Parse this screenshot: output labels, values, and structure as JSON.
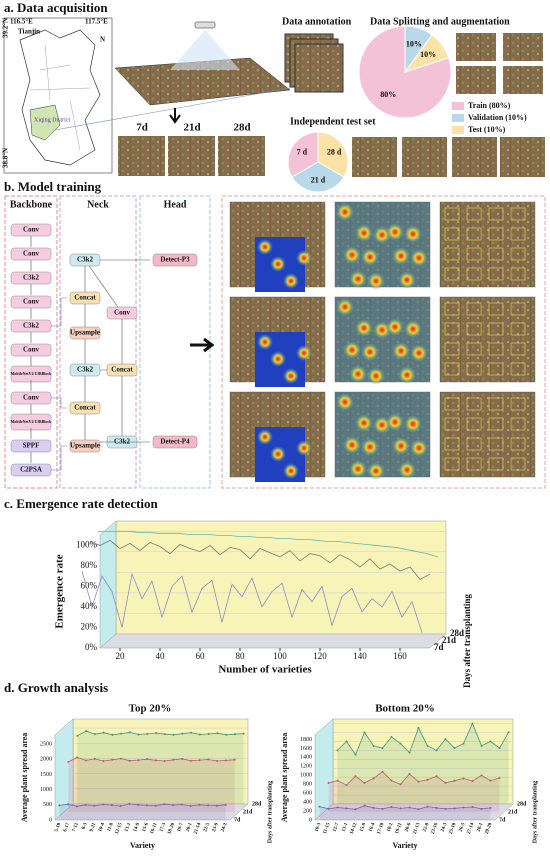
{
  "panels": {
    "a": {
      "title": "a. Data acquisition",
      "map": {
        "lon_left": "116.5°E",
        "lon_right": "117.5°E",
        "lat_top": "39.2°N",
        "lat_bottom": "38.8°N",
        "city": "Tianjin",
        "north": "N",
        "district": "Xiqing District"
      },
      "days": [
        "7d",
        "21d",
        "28d"
      ],
      "annotation_title": "Data annotation"
    },
    "b": {
      "title": "b. Model training",
      "backbone": {
        "title": "Backbone",
        "nodes": [
          "Conv",
          "Conv",
          "C3k2",
          "Conv",
          "C3k2",
          "Conv",
          "MobileNetV4 UIBBlock",
          "Conv",
          "MobileNetV4 UIBBlock",
          "SPPF",
          "C2PSA"
        ]
      },
      "neck": {
        "title": "Neck",
        "nodes": [
          "C3k2",
          "Concat",
          "Upsample",
          "C3k2",
          "Concat",
          "Upsample",
          "Conv",
          "Concat",
          "C3k2"
        ]
      },
      "head": {
        "title": "Head",
        "nodes": [
          "Detect-P3",
          "Detect-P4"
        ]
      }
    },
    "c": {
      "title": "c. Emergence rate detection"
    },
    "d": {
      "title": "d. Growth analysis"
    }
  },
  "chart_data": [
    {
      "type": "pie",
      "title": "Data Splitting and augmentation",
      "categories": [
        "Train (80%)",
        "Validation (10%)",
        "Test (10%)"
      ],
      "values": [
        80,
        10,
        10
      ],
      "value_labels": [
        "80%",
        "10%",
        "10%"
      ],
      "colors": [
        "#f4c2d6",
        "#b9d9ea",
        "#fbe3a8"
      ],
      "legend": "right"
    },
    {
      "type": "pie",
      "title": "Independent test set",
      "categories": [
        "7 d",
        "21 d",
        "28 d"
      ],
      "values": [
        33.3,
        33.3,
        33.3
      ],
      "colors": [
        "#f4c2d6",
        "#b9d9ea",
        "#fbe3a8"
      ]
    },
    {
      "type": "line3d",
      "ylabel": "Emergence rate",
      "xlabel": "Number of varieties",
      "zlabel": "Days after transplanting",
      "x": [
        1,
        6,
        11,
        16,
        21,
        26,
        31,
        36,
        41,
        46,
        51,
        56,
        61,
        66,
        71,
        76,
        81,
        86,
        91,
        96,
        101,
        106,
        111,
        116,
        121,
        126,
        131,
        136,
        141,
        146,
        151,
        156,
        161,
        166,
        171
      ],
      "xlim": [
        10,
        175
      ],
      "xticks": [
        20,
        40,
        60,
        80,
        100,
        120,
        140,
        160
      ],
      "ylim": [
        0,
        110
      ],
      "yticks": [
        {
          "value": 0,
          "label": "0%"
        },
        {
          "value": 20,
          "label": "20%"
        },
        {
          "value": 40,
          "label": "40%"
        },
        {
          "value": 60,
          "label": "60%"
        },
        {
          "value": 80,
          "label": "80%"
        },
        {
          "value": 100,
          "label": "100%"
        }
      ],
      "series": [
        {
          "name": "7d",
          "color": "#9189c6",
          "values": [
            75,
            40,
            70,
            55,
            20,
            72,
            48,
            65,
            30,
            60,
            70,
            35,
            58,
            66,
            25,
            62,
            50,
            68,
            40,
            55,
            63,
            30,
            57,
            45,
            60,
            22,
            50,
            58,
            35,
            48,
            40,
            55,
            30,
            45,
            15
          ]
        },
        {
          "name": "21d",
          "color": "#777777",
          "values": [
            97,
            93,
            98,
            90,
            95,
            88,
            96,
            92,
            85,
            94,
            90,
            87,
            93,
            84,
            91,
            89,
            80,
            90,
            86,
            82,
            88,
            78,
            85,
            83,
            76,
            84,
            79,
            72,
            80,
            70,
            75,
            68,
            72,
            60,
            65
          ]
        },
        {
          "name": "28d",
          "color": "#5fb8b0",
          "values": [
            100,
            100,
            100,
            100,
            99,
            99,
            98,
            98,
            98,
            97,
            97,
            97,
            96,
            96,
            95,
            95,
            94,
            94,
            93,
            93,
            92,
            92,
            91,
            90,
            90,
            89,
            88,
            87,
            86,
            85,
            84,
            82,
            80,
            78,
            75
          ]
        }
      ]
    },
    {
      "type": "line3d",
      "title": "Top 20%",
      "ylabel": "Average plant spread area",
      "xlabel": "Variety",
      "zlabel": "Days after transplanting",
      "categories": [
        "5-10",
        "6-17",
        "7-12",
        "8-3",
        "9-21",
        "10-4",
        "11-8",
        "12-15",
        "13-2",
        "14-9",
        "15-6",
        "16-11",
        "17-3",
        "18-20",
        "19-7",
        "20-1",
        "21-14",
        "22-5",
        "23-9",
        "24-2"
      ],
      "ylim": [
        0,
        2800
      ],
      "yticks": [
        0,
        500,
        1000,
        1500,
        2000,
        2500
      ],
      "series": [
        {
          "name": "7d",
          "color": "#6b6bb0",
          "values": [
            480,
            520,
            450,
            500,
            470,
            510,
            490,
            460,
            530,
            500,
            480,
            470,
            520,
            490,
            510,
            460,
            500,
            480,
            470,
            500
          ]
        },
        {
          "name": "21d",
          "color": "#d05070",
          "values": [
            1650,
            1800,
            1700,
            1750,
            1680,
            1720,
            1760,
            1690,
            1710,
            1740,
            1700,
            1680,
            1720,
            1750,
            1690,
            1710,
            1730,
            1680,
            1700,
            1720
          ]
        },
        {
          "name": "28d",
          "color": "#3a9a80",
          "values": [
            2250,
            2400,
            2300,
            2350,
            2280,
            2320,
            2360,
            2290,
            2310,
            2340,
            2300,
            2280,
            2320,
            2350,
            2290,
            2310,
            2330,
            2280,
            2300,
            2320
          ]
        }
      ]
    },
    {
      "type": "line3d",
      "title": "Bottom 20%",
      "ylabel": "Average plant spread area",
      "xlabel": "Variety",
      "zlabel": "Days after transplanting",
      "categories": [
        "10-3",
        "11-15",
        "12-7",
        "13-1",
        "14-12",
        "15-9",
        "16-4",
        "17-18",
        "18-2",
        "19-11",
        "20-6",
        "21-13",
        "22-8",
        "23-16",
        "24-3",
        "25-10",
        "26-5",
        "27-14",
        "28-1",
        "29-20"
      ],
      "ylim": [
        0,
        1900
      ],
      "yticks": [
        0,
        200,
        400,
        600,
        800,
        1000,
        1200,
        1400,
        1600,
        1800
      ],
      "series": [
        {
          "name": "7d",
          "color": "#6b6bb0",
          "values": [
            300,
            250,
            280,
            260,
            240,
            320,
            270,
            250,
            290,
            260,
            280,
            240,
            300,
            270,
            250,
            260,
            280,
            290,
            250,
            270
          ]
        },
        {
          "name": "21d",
          "color": "#d05070",
          "values": [
            650,
            700,
            600,
            800,
            650,
            750,
            900,
            700,
            620,
            850,
            680,
            720,
            800,
            650,
            700,
            750,
            690,
            820,
            700,
            760
          ]
        },
        {
          "name": "28d",
          "color": "#3a9a80",
          "values": [
            1200,
            1400,
            1100,
            1600,
            1300,
            1250,
            1500,
            1350,
            1150,
            1700,
            1300,
            1200,
            1450,
            1250,
            1350,
            1800,
            1300,
            1400,
            1250,
            1600
          ]
        }
      ]
    }
  ]
}
